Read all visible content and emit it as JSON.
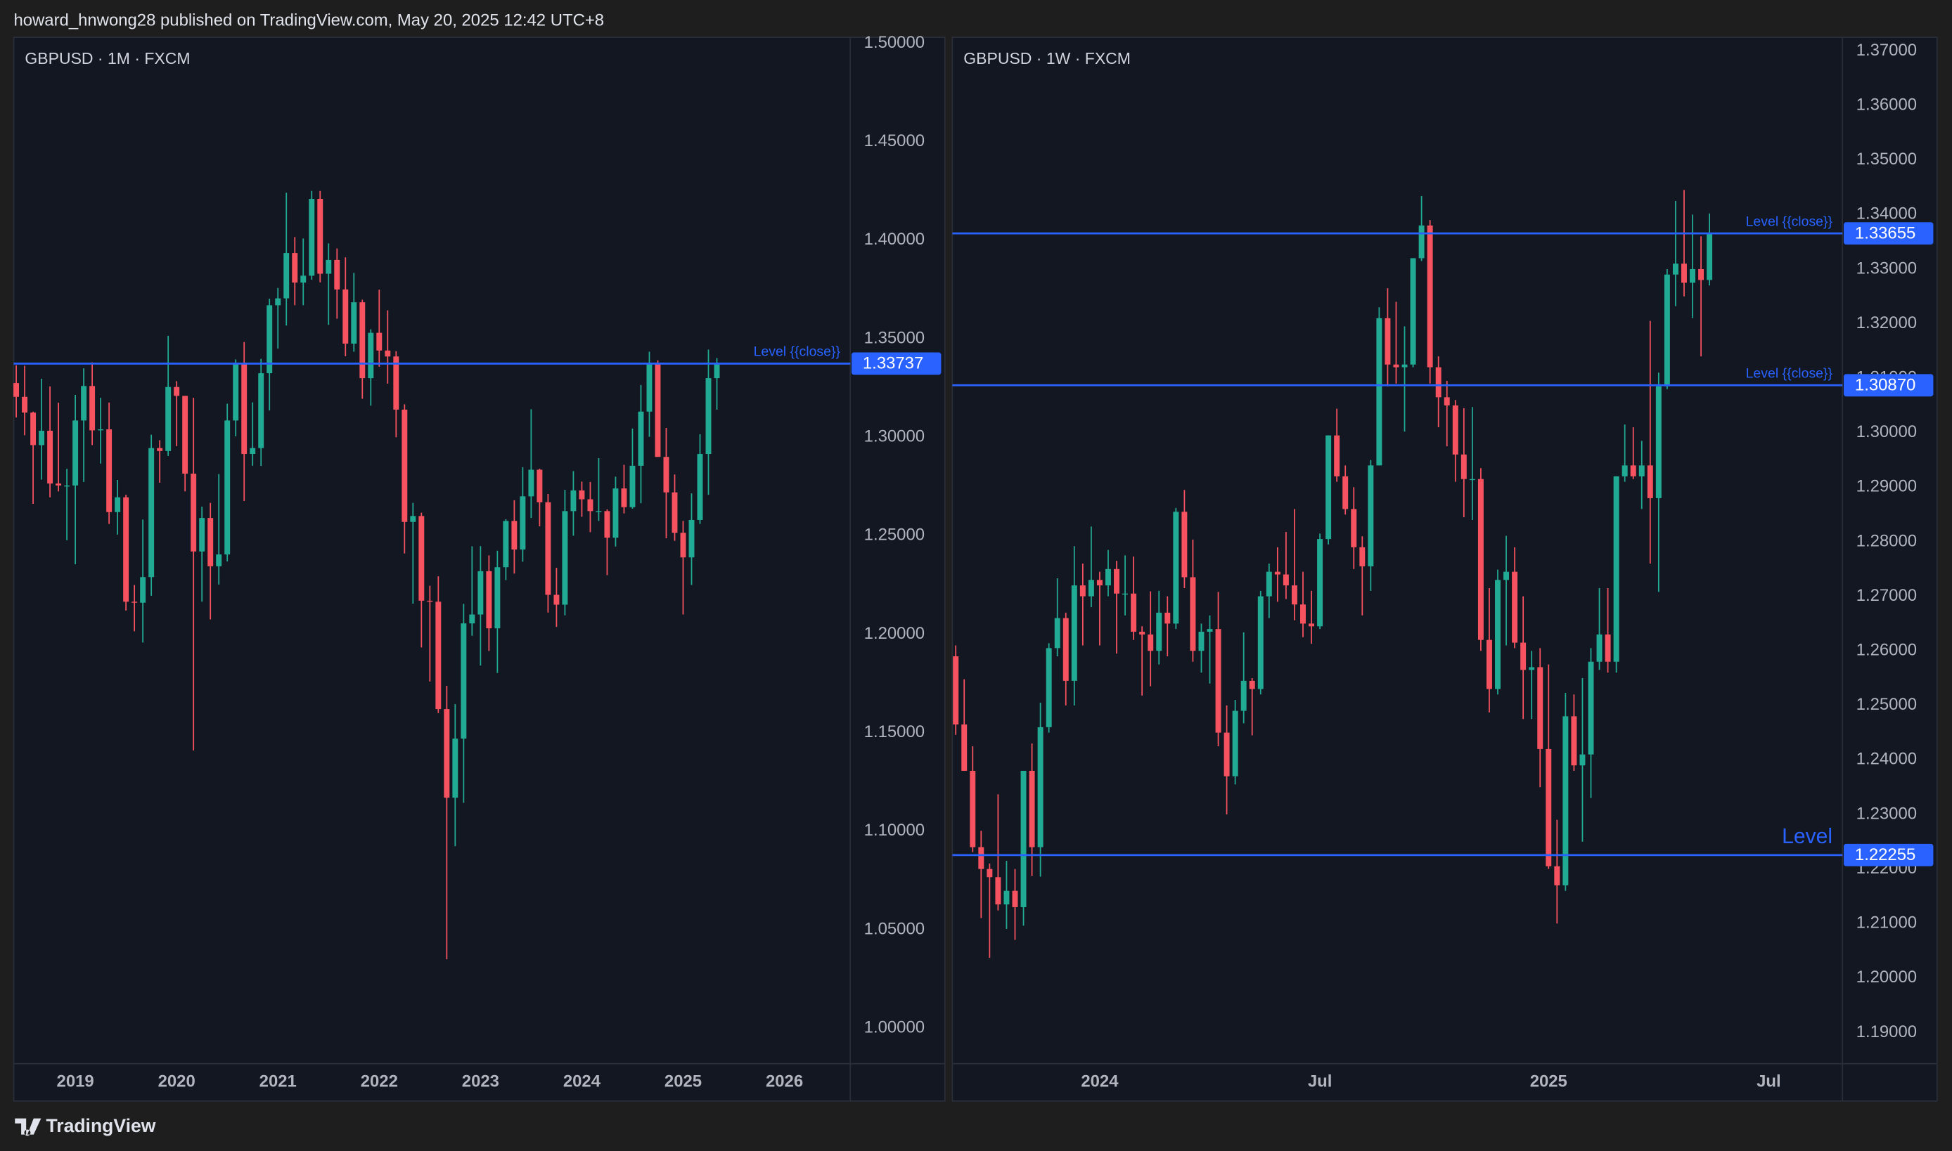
{
  "header": {
    "text": "howard_hnwong28 published on TradingView.com, May 20, 2025 12:42 UTC+8"
  },
  "footer": {
    "brand": "TradingView"
  },
  "chart_data": [
    {
      "type": "candlestick",
      "title": "GBPUSD · 1M · FXCM",
      "up_color": "#22ab94",
      "down_color": "#f7525f",
      "xlim": [
        -0.3,
        98.8
      ],
      "ylim": [
        0.982,
        1.503
      ],
      "xticks": [
        {
          "value": 7,
          "label": "2019"
        },
        {
          "value": 19,
          "label": "2020"
        },
        {
          "value": 31,
          "label": "2021"
        },
        {
          "value": 43,
          "label": "2022"
        },
        {
          "value": 55,
          "label": "2023"
        },
        {
          "value": 67,
          "label": "2024"
        },
        {
          "value": 79,
          "label": "2025"
        },
        {
          "value": 91,
          "label": "2026"
        }
      ],
      "yticks": [
        {
          "value": 1.5,
          "label": "1.50000"
        },
        {
          "value": 1.45,
          "label": "1.45000"
        },
        {
          "value": 1.4,
          "label": "1.40000"
        },
        {
          "value": 1.35,
          "label": "1.35000"
        },
        {
          "value": 1.3,
          "label": "1.30000"
        },
        {
          "value": 1.25,
          "label": "1.25000"
        },
        {
          "value": 1.2,
          "label": "1.20000"
        },
        {
          "value": 1.15,
          "label": "1.15000"
        },
        {
          "value": 1.1,
          "label": "1.10000"
        },
        {
          "value": 1.05,
          "label": "1.05000"
        },
        {
          "value": 1,
          "label": "1.00000"
        }
      ],
      "open": [
        1.3275,
        1.3205,
        1.3125,
        1.296,
        1.3033,
        1.2765,
        1.2755,
        1.2755,
        1.3085,
        1.326,
        1.3035,
        1.304,
        1.262,
        1.2695,
        1.2165,
        1.216,
        1.229,
        1.2945,
        1.293,
        1.3255,
        1.321,
        1.2815,
        1.242,
        1.259,
        1.2345,
        1.2405,
        1.3085,
        1.337,
        1.2915,
        1.2945,
        1.3325,
        1.367,
        1.3705,
        1.3935,
        1.3785,
        1.382,
        1.421,
        1.383,
        1.39,
        1.375,
        1.3475,
        1.3685,
        1.33,
        1.353,
        1.344,
        1.341,
        1.314,
        1.257,
        1.26,
        1.217,
        1.2165,
        1.162,
        1.117,
        1.147,
        1.2055,
        1.21,
        1.232,
        1.203,
        1.234,
        1.2575,
        1.243,
        1.27,
        1.2835,
        1.267,
        1.22,
        1.215,
        1.2625,
        1.273,
        1.2685,
        1.2625,
        1.2625,
        1.249,
        1.274,
        1.2645,
        1.2855,
        1.313,
        1.3375,
        1.29,
        1.272,
        1.2515,
        1.239,
        1.258,
        1.2915,
        1.33
      ],
      "high": [
        1.3365,
        1.3363,
        1.313,
        1.3297,
        1.3258,
        1.3175,
        1.284,
        1.3215,
        1.335,
        1.338,
        1.32,
        1.3176,
        1.2783,
        1.2708,
        1.225,
        1.2582,
        1.3013,
        1.2985,
        1.3515,
        1.3285,
        1.321,
        1.32,
        1.2647,
        1.2667,
        1.2813,
        1.317,
        1.3395,
        1.3483,
        1.3177,
        1.3398,
        1.3703,
        1.3758,
        1.4241,
        1.4016,
        1.4009,
        1.425,
        1.425,
        1.3984,
        1.3958,
        1.3913,
        1.3834,
        1.3698,
        1.3548,
        1.3749,
        1.3644,
        1.3437,
        1.3167,
        1.2667,
        1.2617,
        1.2246,
        1.2294,
        1.1738,
        1.1645,
        1.2154,
        1.2446,
        1.2447,
        1.24,
        1.2424,
        1.2584,
        1.268,
        1.2848,
        1.3142,
        1.284,
        1.2712,
        1.2337,
        1.2733,
        1.2828,
        1.2775,
        1.2773,
        1.2894,
        1.2634,
        1.28,
        1.286,
        1.3044,
        1.3265,
        1.3434,
        1.339,
        1.3047,
        1.2811,
        1.2575,
        1.2715,
        1.3015,
        1.3445,
        1.3402
      ],
      "low": [
        1.31,
        1.301,
        1.2662,
        1.2785,
        1.2695,
        1.2725,
        1.2477,
        1.2355,
        1.2773,
        1.296,
        1.2866,
        1.256,
        1.2506,
        1.212,
        1.2015,
        1.1958,
        1.2195,
        1.2769,
        1.2905,
        1.2955,
        1.2725,
        1.141,
        1.2165,
        1.2075,
        1.2252,
        1.237,
        1.3005,
        1.2676,
        1.2855,
        1.2854,
        1.3136,
        1.345,
        1.3567,
        1.367,
        1.367,
        1.38,
        1.3786,
        1.357,
        1.3602,
        1.3411,
        1.3434,
        1.3195,
        1.316,
        1.3358,
        1.3272,
        1.3,
        1.241,
        1.2155,
        1.1933,
        1.176,
        1.16,
        1.035,
        1.0924,
        1.1144,
        1.1992,
        1.1841,
        1.1915,
        1.1803,
        1.2275,
        1.2308,
        1.2368,
        1.259,
        1.2548,
        1.211,
        1.2037,
        1.2096,
        1.25,
        1.2596,
        1.2518,
        1.2575,
        1.23,
        1.2445,
        1.2613,
        1.2637,
        1.2665,
        1.3002,
        1.2908,
        1.2487,
        1.2474,
        1.21,
        1.225,
        1.256,
        1.2708,
        1.314
      ],
      "close": [
        1.3205,
        1.3125,
        1.296,
        1.3033,
        1.2765,
        1.2755,
        1.2755,
        1.3085,
        1.326,
        1.3035,
        1.304,
        1.262,
        1.2695,
        1.2165,
        1.216,
        1.229,
        1.2945,
        1.293,
        1.3255,
        1.321,
        1.2815,
        1.242,
        1.259,
        1.2345,
        1.2405,
        1.3085,
        1.337,
        1.2915,
        1.2945,
        1.3325,
        1.367,
        1.3705,
        1.3935,
        1.3785,
        1.382,
        1.421,
        1.383,
        1.39,
        1.375,
        1.3475,
        1.3685,
        1.33,
        1.353,
        1.344,
        1.341,
        1.314,
        1.257,
        1.26,
        1.217,
        1.2165,
        1.162,
        1.117,
        1.147,
        1.2055,
        1.21,
        1.232,
        1.203,
        1.234,
        1.2575,
        1.243,
        1.27,
        1.2835,
        1.267,
        1.22,
        1.215,
        1.2625,
        1.273,
        1.2685,
        1.2625,
        1.2625,
        1.249,
        1.274,
        1.2645,
        1.2855,
        1.313,
        1.3375,
        1.29,
        1.272,
        1.2515,
        1.239,
        1.258,
        1.2915,
        1.33,
        1.33737
      ],
      "levels": [
        {
          "value": 1.33737,
          "label": "Level {{close}}",
          "color": "#2962ff"
        }
      ]
    },
    {
      "type": "candlestick",
      "title": "GBPUSD · 1W · FXCM",
      "up_color": "#22ab94",
      "down_color": "#f7525f",
      "xlim": [
        -0.4,
        104.7
      ],
      "ylim": [
        1.1843,
        1.3725
      ],
      "xticks": [
        {
          "value": 17,
          "label": "2024"
        },
        {
          "value": 43,
          "label": "Jul"
        },
        {
          "value": 70,
          "label": "2025"
        },
        {
          "value": 96,
          "label": "Jul"
        }
      ],
      "yticks": [
        {
          "value": 1.37,
          "label": "1.37000"
        },
        {
          "value": 1.36,
          "label": "1.36000"
        },
        {
          "value": 1.35,
          "label": "1.35000"
        },
        {
          "value": 1.34,
          "label": "1.34000"
        },
        {
          "value": 1.33,
          "label": "1.33000"
        },
        {
          "value": 1.32,
          "label": "1.32000"
        },
        {
          "value": 1.31,
          "label": "1.31000"
        },
        {
          "value": 1.3,
          "label": "1.30000"
        },
        {
          "value": 1.29,
          "label": "1.29000"
        },
        {
          "value": 1.28,
          "label": "1.28000"
        },
        {
          "value": 1.27,
          "label": "1.27000"
        },
        {
          "value": 1.26,
          "label": "1.26000"
        },
        {
          "value": 1.25,
          "label": "1.25000"
        },
        {
          "value": 1.24,
          "label": "1.24000"
        },
        {
          "value": 1.23,
          "label": "1.23000"
        },
        {
          "value": 1.22,
          "label": "1.22000"
        },
        {
          "value": 1.21,
          "label": "1.21000"
        },
        {
          "value": 1.2,
          "label": "1.20000"
        },
        {
          "value": 1.19,
          "label": "1.19000"
        }
      ],
      "open": [
        1.259,
        1.2465,
        1.238,
        1.224,
        1.22,
        1.2185,
        1.2135,
        1.216,
        1.213,
        1.238,
        1.224,
        1.246,
        1.2605,
        1.266,
        1.2545,
        1.272,
        1.27,
        1.273,
        1.272,
        1.275,
        1.2705,
        1.2705,
        1.2635,
        1.263,
        1.26,
        1.267,
        1.265,
        1.2855,
        1.2735,
        1.26,
        1.2635,
        1.264,
        1.245,
        1.237,
        1.249,
        1.2545,
        1.253,
        1.27,
        1.2745,
        1.274,
        1.272,
        1.2685,
        1.265,
        1.2645,
        1.2805,
        1.2995,
        1.292,
        1.286,
        1.279,
        1.2755,
        1.294,
        1.321,
        1.3125,
        1.312,
        1.3125,
        1.332,
        1.338,
        1.312,
        1.3065,
        1.305,
        1.296,
        1.2915,
        1.2915,
        1.262,
        1.253,
        1.273,
        1.2745,
        1.2615,
        1.2565,
        1.257,
        1.242,
        1.2205,
        1.217,
        1.248,
        1.239,
        1.241,
        1.258,
        1.263,
        1.258,
        1.292,
        1.294,
        1.292,
        1.294,
        1.288,
        1.3085,
        1.329,
        1.331,
        1.3275,
        1.33,
        1.328
      ],
      "high": [
        1.261,
        1.2548,
        1.2425,
        1.227,
        1.221,
        1.2337,
        1.2215,
        1.22,
        1.238,
        1.243,
        1.2505,
        1.2614,
        1.2733,
        1.267,
        1.2792,
        1.276,
        1.2828,
        1.2745,
        1.2785,
        1.2765,
        1.2775,
        1.2773,
        1.2645,
        1.2709,
        1.271,
        1.27,
        1.2862,
        1.2895,
        1.2804,
        1.265,
        1.2665,
        1.2708,
        1.25,
        1.251,
        1.2634,
        1.255,
        1.271,
        1.276,
        1.279,
        1.2818,
        1.286,
        1.2745,
        1.271,
        1.2815,
        1.2995,
        1.3044,
        1.294,
        1.29,
        1.281,
        1.295,
        1.323,
        1.3265,
        1.324,
        1.3195,
        1.332,
        1.3434,
        1.339,
        1.314,
        1.3095,
        1.306,
        1.3045,
        1.3047,
        1.2935,
        1.2715,
        1.2749,
        1.2811,
        1.279,
        1.27,
        1.26,
        1.2605,
        1.2575,
        1.229,
        1.2523,
        1.252,
        1.255,
        1.2605,
        1.2715,
        1.2715,
        1.292,
        1.3015,
        1.301,
        1.2985,
        1.3205,
        1.311,
        1.33,
        1.3425,
        1.3445,
        1.34,
        1.336,
        1.3402
      ],
      "low": [
        1.2446,
        1.238,
        1.2231,
        1.211,
        1.2037,
        1.2124,
        1.209,
        1.207,
        1.2096,
        1.2187,
        1.2186,
        1.245,
        1.259,
        1.25,
        1.25,
        1.261,
        1.268,
        1.261,
        1.27,
        1.2595,
        1.2665,
        1.262,
        1.2518,
        1.2535,
        1.2575,
        1.259,
        1.264,
        1.2715,
        1.258,
        1.256,
        1.254,
        1.2425,
        1.23,
        1.2355,
        1.2467,
        1.2445,
        1.252,
        1.266,
        1.269,
        1.2695,
        1.2656,
        1.2625,
        1.2613,
        1.264,
        1.2795,
        1.291,
        1.285,
        1.275,
        1.2665,
        1.271,
        1.294,
        1.3085,
        1.309,
        1.3002,
        1.312,
        1.3315,
        1.309,
        1.301,
        1.2975,
        1.291,
        1.2845,
        1.284,
        1.26,
        1.2487,
        1.252,
        1.261,
        1.2605,
        1.2475,
        1.2475,
        1.235,
        1.22,
        1.21,
        1.216,
        1.238,
        1.225,
        1.233,
        1.2565,
        1.256,
        1.256,
        1.291,
        1.2915,
        1.286,
        1.276,
        1.2708,
        1.308,
        1.3232,
        1.325,
        1.321,
        1.314,
        1.327
      ],
      "close": [
        1.2465,
        1.238,
        1.224,
        1.22,
        1.2185,
        1.2135,
        1.216,
        1.213,
        1.238,
        1.224,
        1.246,
        1.2605,
        1.266,
        1.2545,
        1.272,
        1.27,
        1.273,
        1.272,
        1.275,
        1.2705,
        1.2705,
        1.2635,
        1.263,
        1.26,
        1.267,
        1.265,
        1.2855,
        1.2735,
        1.26,
        1.2635,
        1.264,
        1.245,
        1.237,
        1.249,
        1.2545,
        1.253,
        1.27,
        1.2745,
        1.274,
        1.272,
        1.2685,
        1.265,
        1.2645,
        1.2805,
        1.2995,
        1.292,
        1.286,
        1.279,
        1.2755,
        1.294,
        1.321,
        1.3125,
        1.312,
        1.3125,
        1.332,
        1.338,
        1.312,
        1.3065,
        1.305,
        1.296,
        1.2915,
        1.2915,
        1.262,
        1.253,
        1.273,
        1.2745,
        1.2615,
        1.2565,
        1.257,
        1.242,
        1.2205,
        1.217,
        1.248,
        1.239,
        1.241,
        1.258,
        1.263,
        1.258,
        1.292,
        1.294,
        1.292,
        1.294,
        1.288,
        1.3085,
        1.329,
        1.331,
        1.3275,
        1.33,
        1.328,
        1.33655
      ],
      "levels": [
        {
          "value": 1.33655,
          "label": "Level {{close}}",
          "color": "#2962ff"
        },
        {
          "value": 1.3087,
          "value_label": "1.30870",
          "label": "Level {{close}}",
          "color": "#2962ff"
        },
        {
          "value": 1.22255,
          "label": "Level",
          "color": "#2962ff"
        }
      ]
    }
  ]
}
